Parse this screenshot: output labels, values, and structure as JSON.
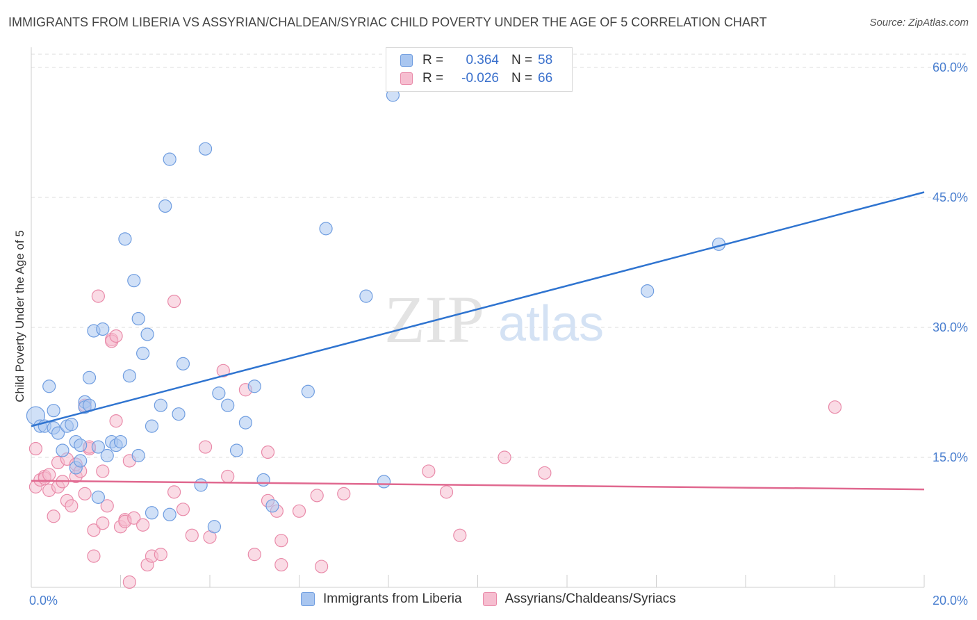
{
  "header": {
    "title": "IMMIGRANTS FROM LIBERIA VS ASSYRIAN/CHALDEAN/SYRIAC CHILD POVERTY UNDER THE AGE OF 5 CORRELATION CHART",
    "source": "Source: ZipAtlas.com"
  },
  "watermark": {
    "zip": "ZIP",
    "atlas": "atlas"
  },
  "legend": {
    "rows": [
      {
        "r_label": "R =",
        "r_value": "0.364",
        "n_label": "N =",
        "n_value": "58",
        "color": "#a9c6f0",
        "border": "#6f9de0"
      },
      {
        "r_label": "R =",
        "r_value": "-0.026",
        "n_label": "N =",
        "n_value": "66",
        "color": "#f6bed0",
        "border": "#e98aa9"
      }
    ]
  },
  "bottom_legend": {
    "series1": "Immigrants from Liberia",
    "series2": "Assyrians/Chaldeans/Syriacs"
  },
  "colors": {
    "blue_fill": "#a9c6f0",
    "blue_stroke": "#6f9de0",
    "blue_line": "#2f74d0",
    "pink_fill": "#f6bed0",
    "pink_stroke": "#e98aa9",
    "pink_line": "#e0688f",
    "tick_text": "#4a7fd0"
  },
  "chart_data": {
    "type": "scatter",
    "title": "IMMIGRANTS FROM LIBERIA VS ASSYRIAN/CHALDEAN/SYRIAC CHILD POVERTY UNDER THE AGE OF 5 CORRELATION CHART",
    "xlabel": "",
    "ylabel": "Child Poverty Under the Age of 5",
    "xlim": [
      0,
      20
    ],
    "ylim": [
      0,
      60
    ],
    "x_tick_labels": [
      "0.0%",
      "20.0%"
    ],
    "y_ticks": [
      15,
      30,
      45,
      60
    ],
    "y_tick_labels": [
      "15.0%",
      "30.0%",
      "45.0%",
      "60.0%"
    ],
    "grid": true,
    "legend_position": "top-center",
    "series": [
      {
        "name": "Immigrants from Liberia",
        "color": "#a9c6f0",
        "trend": [
          [
            0,
            18.6
          ],
          [
            20,
            45.6
          ]
        ],
        "points": [
          [
            0.1,
            19.8
          ],
          [
            0.2,
            18.6
          ],
          [
            0.3,
            18.6
          ],
          [
            0.4,
            23.2
          ],
          [
            0.5,
            18.4
          ],
          [
            0.5,
            20.4
          ],
          [
            0.6,
            17.8
          ],
          [
            0.7,
            15.8
          ],
          [
            0.8,
            18.6
          ],
          [
            0.9,
            18.8
          ],
          [
            1.0,
            13.8
          ],
          [
            1.0,
            16.8
          ],
          [
            1.1,
            14.6
          ],
          [
            1.1,
            16.4
          ],
          [
            1.2,
            21.4
          ],
          [
            1.2,
            20.8
          ],
          [
            1.3,
            24.2
          ],
          [
            1.3,
            21.0
          ],
          [
            1.4,
            29.6
          ],
          [
            1.5,
            10.4
          ],
          [
            1.5,
            16.2
          ],
          [
            1.6,
            29.8
          ],
          [
            1.7,
            15.2
          ],
          [
            1.8,
            16.8
          ],
          [
            1.9,
            16.4
          ],
          [
            2.0,
            16.8
          ],
          [
            2.1,
            40.2
          ],
          [
            2.2,
            24.4
          ],
          [
            2.3,
            35.4
          ],
          [
            2.4,
            15.2
          ],
          [
            2.4,
            31.0
          ],
          [
            2.5,
            27.0
          ],
          [
            2.6,
            29.2
          ],
          [
            2.7,
            8.6
          ],
          [
            2.7,
            18.6
          ],
          [
            2.9,
            21.0
          ],
          [
            3.0,
            44.0
          ],
          [
            3.1,
            8.4
          ],
          [
            3.1,
            49.4
          ],
          [
            3.3,
            20.0
          ],
          [
            3.4,
            25.8
          ],
          [
            3.8,
            11.8
          ],
          [
            3.9,
            50.6
          ],
          [
            4.1,
            7.0
          ],
          [
            4.2,
            22.4
          ],
          [
            4.4,
            21.0
          ],
          [
            4.6,
            15.8
          ],
          [
            4.8,
            19.0
          ],
          [
            5.0,
            23.2
          ],
          [
            5.2,
            12.4
          ],
          [
            5.4,
            9.4
          ],
          [
            6.2,
            22.6
          ],
          [
            6.6,
            41.4
          ],
          [
            7.5,
            33.6
          ],
          [
            7.9,
            12.2
          ],
          [
            8.1,
            56.8
          ],
          [
            13.8,
            34.2
          ],
          [
            15.4,
            39.6
          ]
        ]
      },
      {
        "name": "Assyrians/Chaldeans/Syriacs",
        "color": "#f6bed0",
        "trend": [
          [
            0,
            12.3
          ],
          [
            20,
            11.3
          ]
        ],
        "points": [
          [
            0.1,
            16.0
          ],
          [
            0.1,
            11.6
          ],
          [
            0.2,
            12.4
          ],
          [
            0.3,
            12.8
          ],
          [
            0.3,
            12.6
          ],
          [
            0.4,
            13.0
          ],
          [
            0.4,
            11.2
          ],
          [
            0.5,
            8.2
          ],
          [
            0.6,
            11.6
          ],
          [
            0.6,
            14.4
          ],
          [
            0.7,
            12.2
          ],
          [
            0.8,
            10.0
          ],
          [
            0.8,
            14.8
          ],
          [
            0.9,
            9.4
          ],
          [
            1.0,
            12.8
          ],
          [
            1.0,
            14.2
          ],
          [
            1.1,
            13.4
          ],
          [
            1.2,
            10.8
          ],
          [
            1.2,
            21.0
          ],
          [
            1.3,
            16.0
          ],
          [
            1.3,
            16.2
          ],
          [
            1.4,
            3.6
          ],
          [
            1.4,
            6.6
          ],
          [
            1.5,
            33.6
          ],
          [
            1.6,
            7.4
          ],
          [
            1.6,
            13.4
          ],
          [
            1.7,
            9.4
          ],
          [
            1.8,
            28.6
          ],
          [
            1.8,
            28.4
          ],
          [
            1.9,
            29.0
          ],
          [
            1.9,
            19.2
          ],
          [
            2.0,
            7.0
          ],
          [
            2.1,
            7.8
          ],
          [
            2.1,
            7.6
          ],
          [
            2.2,
            14.6
          ],
          [
            2.2,
            0.6
          ],
          [
            2.3,
            8.0
          ],
          [
            2.5,
            7.2
          ],
          [
            2.6,
            2.6
          ],
          [
            2.7,
            3.6
          ],
          [
            2.9,
            3.8
          ],
          [
            3.2,
            11.0
          ],
          [
            3.2,
            33.0
          ],
          [
            3.4,
            9.0
          ],
          [
            3.6,
            6.0
          ],
          [
            3.9,
            16.2
          ],
          [
            4.0,
            5.8
          ],
          [
            4.3,
            25.0
          ],
          [
            4.4,
            12.8
          ],
          [
            4.8,
            22.8
          ],
          [
            5.0,
            3.8
          ],
          [
            5.3,
            10.0
          ],
          [
            5.3,
            15.6
          ],
          [
            5.5,
            8.8
          ],
          [
            5.6,
            5.4
          ],
          [
            5.6,
            2.6
          ],
          [
            6.0,
            8.8
          ],
          [
            6.4,
            10.6
          ],
          [
            6.5,
            2.4
          ],
          [
            7.0,
            10.8
          ],
          [
            8.9,
            13.4
          ],
          [
            9.3,
            11.0
          ],
          [
            9.6,
            6.0
          ],
          [
            10.6,
            15.0
          ],
          [
            11.5,
            13.2
          ],
          [
            18.0,
            20.8
          ]
        ]
      }
    ]
  }
}
